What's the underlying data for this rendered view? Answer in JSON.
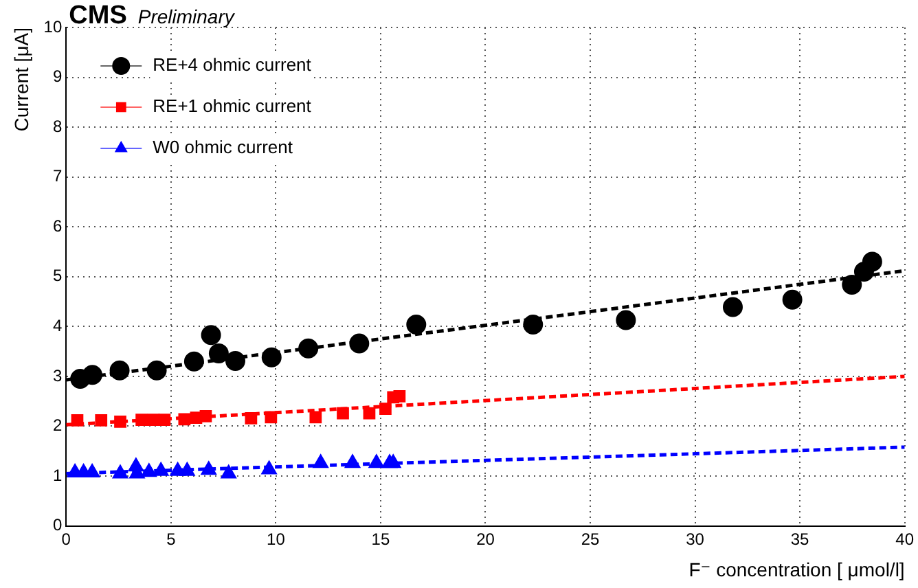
{
  "chart_data": {
    "type": "scatter",
    "title": "CMS",
    "subtitle": "Preliminary",
    "xlabel": "F⁻ concentration [ μmol/l]",
    "ylabel": "Current [μA]",
    "xlim": [
      0,
      40
    ],
    "xticks": [
      0,
      5,
      10,
      15,
      20,
      25,
      30,
      35,
      40
    ],
    "ylim": [
      0,
      10
    ],
    "yticks": [
      0,
      1,
      2,
      3,
      4,
      5,
      6,
      7,
      8,
      9,
      10
    ],
    "grid": true,
    "legend": "top left",
    "series": [
      {
        "name": "RE+4 ohmic current",
        "color": "#000000",
        "marker": "circle",
        "x": [
          0.67,
          1.25,
          2.55,
          4.32,
          6.1,
          6.91,
          7.28,
          8.07,
          9.8,
          11.55,
          13.98,
          16.7,
          22.27,
          26.7,
          31.8,
          34.64,
          37.48,
          38.06,
          38.45
        ],
        "values": [
          2.95,
          3.03,
          3.12,
          3.12,
          3.3,
          3.83,
          3.46,
          3.31,
          3.38,
          3.56,
          3.66,
          4.04,
          4.04,
          4.13,
          4.39,
          4.54,
          4.84,
          5.1,
          5.3
        ]
      },
      {
        "name": "RE+1 ohmic current",
        "color": "#ff0000",
        "marker": "square",
        "x": [
          0.53,
          1.67,
          2.58,
          3.6,
          4.17,
          4.69,
          5.64,
          6.2,
          6.66,
          8.82,
          9.77,
          11.9,
          13.2,
          14.46,
          15.23,
          15.6,
          15.9
        ],
        "values": [
          2.12,
          2.12,
          2.09,
          2.13,
          2.13,
          2.13,
          2.14,
          2.17,
          2.2,
          2.16,
          2.18,
          2.18,
          2.26,
          2.26,
          2.35,
          2.58,
          2.6
        ]
      },
      {
        "name": "W0 ohmic current",
        "color": "#0000ff",
        "marker": "triangle",
        "x": [
          0.42,
          0.83,
          1.24,
          2.58,
          3.33,
          3.38,
          3.95,
          4.52,
          5.32,
          5.77,
          6.8,
          7.75,
          9.68,
          12.14,
          13.66,
          14.8,
          15.43,
          15.6
        ],
        "values": [
          1.07,
          1.07,
          1.07,
          1.05,
          1.19,
          1.05,
          1.08,
          1.1,
          1.1,
          1.1,
          1.12,
          1.05,
          1.13,
          1.26,
          1.26,
          1.26,
          1.26,
          1.26
        ]
      },
      {
        "type": "line",
        "color": "#000000",
        "marker": "none",
        "line_style": "dashed",
        "x": [
          0,
          40
        ],
        "values": [
          2.93,
          5.12
        ]
      },
      {
        "type": "line",
        "color": "#ff0000",
        "marker": "none",
        "line_style": "dashed",
        "x": [
          0,
          40
        ],
        "values": [
          2.03,
          3.0
        ]
      },
      {
        "type": "line",
        "color": "#0000ff",
        "marker": "none",
        "line_style": "dashed",
        "x": [
          0,
          40
        ],
        "values": [
          1.05,
          1.58
        ]
      }
    ]
  }
}
